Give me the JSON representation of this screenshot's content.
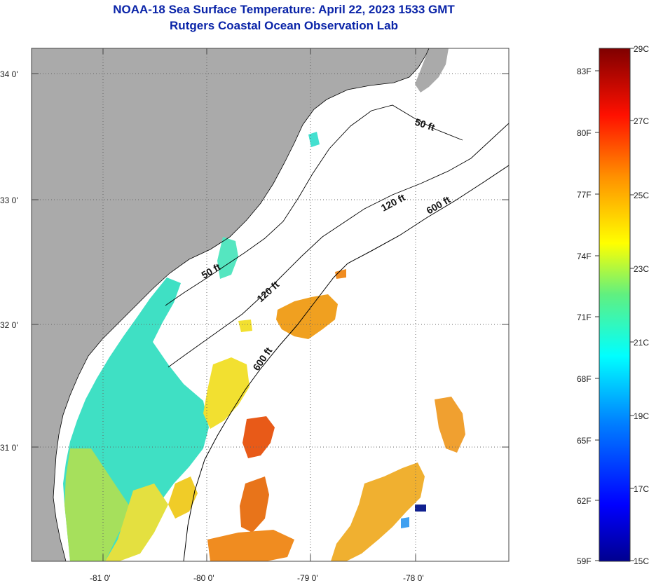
{
  "header": {
    "title": "NOAA-18 Sea Surface Temperature:  April 22, 2023 1533 GMT",
    "subtitle": "Rutgers Coastal Ocean Observation Lab"
  },
  "map": {
    "lat_labels": [
      "34 0'",
      "33 0'",
      "32 0'",
      "31 0'"
    ],
    "lon_labels": [
      "-81 0'",
      "-80 0'",
      "-79 0'",
      "-78 0'"
    ],
    "isobaths": [
      "50 ft",
      "120 ft",
      "600 ft",
      "50 ft",
      "120 ft",
      "600 ft"
    ]
  },
  "colorbar": {
    "fahrenheit": [
      "83F",
      "80F",
      "77F",
      "74F",
      "71F",
      "68F",
      "65F",
      "62F",
      "59F"
    ],
    "celsius": [
      "29C",
      "27C",
      "25C",
      "23C",
      "21C",
      "19C",
      "17C",
      "15C"
    ]
  },
  "colors": {
    "land": "#aaaaaa",
    "title": "#0a24a8",
    "sst_cool": "#33e6c8",
    "sst_green": "#9be060",
    "sst_yellow": "#f0e030",
    "sst_orange": "#f0a020",
    "sst_red": "#e84818"
  }
}
